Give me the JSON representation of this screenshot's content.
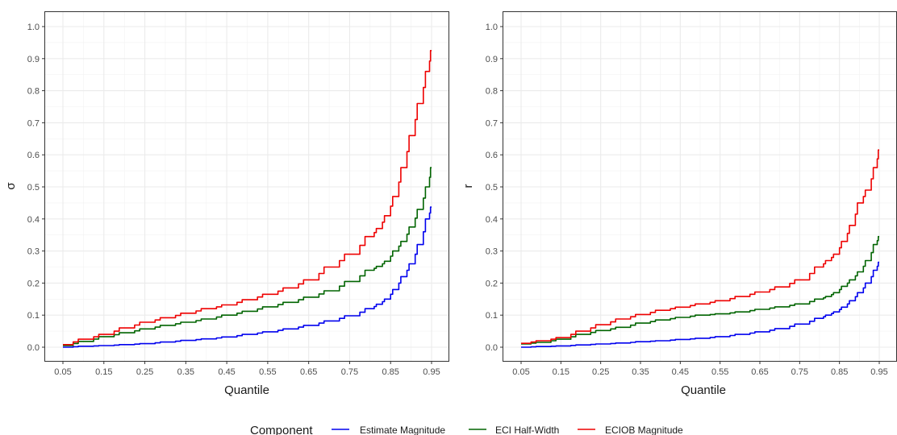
{
  "chart_data": [
    {
      "type": "line",
      "xlabel": "Quantile",
      "ylabel": "σ",
      "xlim": [
        0.05,
        0.95
      ],
      "ylim": [
        0.0,
        1.0
      ],
      "x_ticks": [
        0.05,
        0.15,
        0.25,
        0.35,
        0.45,
        0.55,
        0.65,
        0.75,
        0.85,
        0.95
      ],
      "x_tick_labels": [
        "0.05",
        "0.15",
        "0.25",
        "0.35",
        "0.45",
        "0.55",
        "0.65",
        "0.75",
        "0.85",
        "0.95"
      ],
      "y_ticks": [
        0.0,
        0.1,
        0.2,
        0.3,
        0.4,
        0.5,
        0.6,
        0.7,
        0.8,
        0.9,
        1.0
      ],
      "y_tick_labels": [
        "0.0",
        "0.1",
        "0.2",
        "0.3",
        "0.4",
        "0.5",
        "0.6",
        "0.7",
        "0.8",
        "0.9",
        "1.0"
      ],
      "grid": true,
      "x": [
        0.05,
        0.1,
        0.15,
        0.2,
        0.25,
        0.3,
        0.35,
        0.4,
        0.45,
        0.5,
        0.55,
        0.6,
        0.65,
        0.7,
        0.75,
        0.8,
        0.82,
        0.84,
        0.86,
        0.88,
        0.9,
        0.92,
        0.94,
        0.95
      ],
      "series": [
        {
          "name": "Estimate Magnitude",
          "color": "#0000ee",
          "values": [
            0.0,
            0.003,
            0.005,
            0.008,
            0.011,
            0.016,
            0.021,
            0.026,
            0.032,
            0.04,
            0.048,
            0.057,
            0.068,
            0.082,
            0.098,
            0.12,
            0.134,
            0.15,
            0.18,
            0.22,
            0.26,
            0.32,
            0.4,
            0.437
          ]
        },
        {
          "name": "ECI Half-Width",
          "color": "#006400",
          "values": [
            0.005,
            0.018,
            0.033,
            0.045,
            0.057,
            0.068,
            0.078,
            0.088,
            0.1,
            0.112,
            0.126,
            0.14,
            0.156,
            0.176,
            0.205,
            0.24,
            0.252,
            0.268,
            0.3,
            0.33,
            0.375,
            0.43,
            0.5,
            0.56
          ]
        },
        {
          "name": "ECIOB Magnitude",
          "color": "#ee0000",
          "values": [
            0.008,
            0.025,
            0.04,
            0.06,
            0.078,
            0.092,
            0.106,
            0.12,
            0.132,
            0.148,
            0.165,
            0.185,
            0.21,
            0.25,
            0.29,
            0.345,
            0.37,
            0.41,
            0.47,
            0.56,
            0.66,
            0.76,
            0.86,
            0.925
          ]
        }
      ]
    },
    {
      "type": "line",
      "xlabel": "Quantile",
      "ylabel": "r",
      "xlim": [
        0.05,
        0.95
      ],
      "ylim": [
        0.0,
        1.0
      ],
      "x_ticks": [
        0.05,
        0.15,
        0.25,
        0.35,
        0.45,
        0.55,
        0.65,
        0.75,
        0.85,
        0.95
      ],
      "x_tick_labels": [
        "0.05",
        "0.15",
        "0.25",
        "0.35",
        "0.45",
        "0.55",
        "0.65",
        "0.75",
        "0.85",
        "0.95"
      ],
      "y_ticks": [
        0.0,
        0.1,
        0.2,
        0.3,
        0.4,
        0.5,
        0.6,
        0.7,
        0.8,
        0.9,
        1.0
      ],
      "y_tick_labels": [
        "0.0",
        "0.1",
        "0.2",
        "0.3",
        "0.4",
        "0.5",
        "0.6",
        "0.7",
        "0.8",
        "0.9",
        "1.0"
      ],
      "grid": true,
      "x": [
        0.05,
        0.1,
        0.15,
        0.2,
        0.25,
        0.3,
        0.35,
        0.4,
        0.45,
        0.5,
        0.55,
        0.6,
        0.65,
        0.7,
        0.75,
        0.8,
        0.82,
        0.84,
        0.86,
        0.88,
        0.9,
        0.92,
        0.94,
        0.95
      ],
      "series": [
        {
          "name": "Estimate Magnitude",
          "color": "#0000ee",
          "values": [
            0.0,
            0.002,
            0.004,
            0.007,
            0.01,
            0.013,
            0.017,
            0.02,
            0.024,
            0.028,
            0.033,
            0.04,
            0.048,
            0.058,
            0.072,
            0.09,
            0.1,
            0.11,
            0.125,
            0.145,
            0.17,
            0.2,
            0.24,
            0.265
          ]
        },
        {
          "name": "ECI Half-Width",
          "color": "#006400",
          "values": [
            0.01,
            0.015,
            0.025,
            0.04,
            0.052,
            0.062,
            0.075,
            0.085,
            0.093,
            0.1,
            0.104,
            0.11,
            0.118,
            0.126,
            0.135,
            0.15,
            0.158,
            0.17,
            0.19,
            0.21,
            0.235,
            0.27,
            0.32,
            0.345
          ]
        },
        {
          "name": "ECIOB Magnitude",
          "color": "#ee0000",
          "values": [
            0.012,
            0.02,
            0.03,
            0.05,
            0.07,
            0.088,
            0.102,
            0.115,
            0.125,
            0.135,
            0.145,
            0.158,
            0.172,
            0.188,
            0.21,
            0.25,
            0.27,
            0.29,
            0.33,
            0.38,
            0.45,
            0.49,
            0.56,
            0.615
          ]
        }
      ]
    }
  ],
  "legend": {
    "title": "Component",
    "position": "bottom",
    "items": [
      {
        "label": "Estimate Magnitude",
        "color": "#0000ee"
      },
      {
        "label": "ECI Half-Width",
        "color": "#006400"
      },
      {
        "label": "ECIOB Magnitude",
        "color": "#ee0000"
      }
    ]
  }
}
